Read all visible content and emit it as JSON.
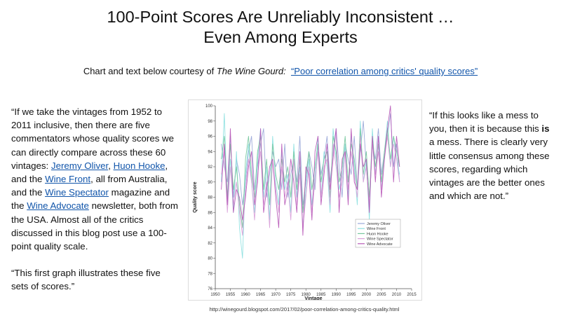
{
  "slide": {
    "title_line1": "100-Point Scores Are Unreliably Inconsistent …",
    "title_line2": "Even Among Experts",
    "subtitle_prefix": "Chart and text below courtesy of ",
    "subtitle_source": "The Wine Gourd:",
    "subtitle_link": "“Poor correlation among critics' quality scores”",
    "left_quote": {
      "p1_a": "“If we take the vintages from 1952 to 2011 inclusive, then there are five commentators whose quality scores we can directly compare across these 60 vintages: ",
      "link1": "Jeremy Oliver",
      "p1_b": ", ",
      "link2": "Huon Hooke",
      "p1_c": ", and the ",
      "link3": "Wine Front",
      "p1_d": ", all from Australia, and the ",
      "link4": "Wine Spectator",
      "p1_e": " magazine and the ",
      "link5": "Wine Advocate",
      "p1_f": " newsletter, both from the USA. Almost all of the critics discussed in this blog post use a 100-point quality scale.",
      "p2": "“This first graph illustrates these five sets of scores.”"
    },
    "right_quote": {
      "a": "“If this looks like a mess to you, then it is because this ",
      "bold": "is",
      "b": " a mess. There is clearly very little consensus among these scores, regarding which vintages are the better ones and which are not.”"
    },
    "source_url": "http://winegourd.blogspot.com/2017/02/poor-correlation-among-critics-quality.html"
  },
  "chart_data": {
    "type": "line",
    "xlabel": "Vintage",
    "ylabel": "Quality score",
    "xlim": [
      1950,
      2015
    ],
    "ylim": [
      76,
      100
    ],
    "xticks": [
      1950,
      1955,
      1960,
      1965,
      1970,
      1975,
      1980,
      1985,
      1990,
      1995,
      2000,
      2005,
      2010,
      2015
    ],
    "yticks": [
      76,
      78,
      80,
      82,
      84,
      86,
      88,
      90,
      92,
      94,
      96,
      98,
      100
    ],
    "grid": false,
    "legend_position": "right",
    "x": [
      1952,
      1953,
      1954,
      1955,
      1956,
      1957,
      1958,
      1959,
      1960,
      1961,
      1962,
      1963,
      1964,
      1965,
      1966,
      1967,
      1968,
      1969,
      1970,
      1971,
      1972,
      1973,
      1974,
      1975,
      1976,
      1977,
      1978,
      1979,
      1980,
      1981,
      1982,
      1983,
      1984,
      1985,
      1986,
      1987,
      1988,
      1989,
      1990,
      1991,
      1992,
      1993,
      1994,
      1995,
      1996,
      1997,
      1998,
      1999,
      2000,
      2001,
      2002,
      2003,
      2004,
      2005,
      2006,
      2007,
      2008,
      2009,
      2010,
      2011
    ],
    "series": [
      {
        "name": "Jeremy Oliver",
        "color": "#9aa8d8",
        "values": [
          95,
          92,
          90,
          96,
          88,
          93,
          91,
          87,
          90,
          94,
          96,
          89,
          92,
          95,
          97,
          88,
          91,
          94,
          92,
          93,
          89,
          95,
          88,
          91,
          93,
          90,
          96,
          87,
          90,
          94,
          92,
          89,
          95,
          91,
          93,
          96,
          90,
          94,
          97,
          92,
          88,
          95,
          93,
          91,
          96,
          89,
          94,
          98,
          92,
          87,
          95,
          93,
          97,
          91,
          94,
          96,
          99,
          92,
          95,
          90
        ]
      },
      {
        "name": "Wine Front",
        "color": "#8ee0e0",
        "values": [
          90,
          99,
          87,
          93,
          86,
          94,
          84,
          80,
          91,
          95,
          90,
          86,
          93,
          97,
          88,
          92,
          85,
          96,
          90,
          87,
          94,
          89,
          91,
          86,
          95,
          88,
          92,
          84,
          89,
          93,
          87,
          91,
          96,
          88,
          94,
          92,
          86,
          97,
          93,
          89,
          91,
          95,
          88,
          96,
          92,
          87,
          98,
          90,
          93,
          85,
          97,
          91,
          95,
          89,
          94,
          98,
          92,
          96,
          93,
          91
        ]
      },
      {
        "name": "Huon Hooke",
        "color": "#77c79e",
        "values": [
          93,
          96,
          88,
          95,
          89,
          92,
          87,
          84,
          93,
          96,
          91,
          88,
          94,
          96,
          89,
          93,
          87,
          95,
          91,
          89,
          93,
          90,
          92,
          88,
          94,
          89,
          93,
          86,
          91,
          94,
          89,
          92,
          95,
          90,
          93,
          94,
          88,
          96,
          94,
          90,
          92,
          96,
          90,
          95,
          93,
          89,
          97,
          91,
          94,
          88,
          96,
          92,
          95,
          90,
          94,
          97,
          93,
          96,
          94,
          92
        ]
      },
      {
        "name": "Wine Spectator",
        "color": "#d9a0d9",
        "values": [
          91,
          94,
          86,
          92,
          87,
          90,
          86,
          83,
          89,
          93,
          90,
          85,
          91,
          94,
          87,
          90,
          84,
          93,
          89,
          86,
          92,
          88,
          90,
          85,
          93,
          87,
          91,
          84,
          88,
          92,
          86,
          90,
          94,
          88,
          92,
          93,
          87,
          95,
          92,
          88,
          90,
          94,
          89,
          94,
          91,
          88,
          96,
          90,
          92,
          87,
          95,
          91,
          94,
          89,
          93,
          96,
          92,
          95,
          93,
          90
        ]
      },
      {
        "name": "Wine Advocate",
        "color": "#b85ab8",
        "values": [
          89,
          95,
          87,
          97,
          86,
          89,
          88,
          85,
          88,
          92,
          94,
          87,
          90,
          97,
          86,
          89,
          92,
          93,
          88,
          84,
          95,
          87,
          89,
          93,
          90,
          86,
          94,
          83,
          92,
          91,
          85,
          94,
          96,
          87,
          91,
          95,
          89,
          93,
          97,
          86,
          93,
          94,
          87,
          97,
          90,
          89,
          95,
          92,
          93,
          86,
          96,
          90,
          96,
          88,
          93,
          97,
          100,
          90,
          96,
          92
        ]
      }
    ]
  }
}
